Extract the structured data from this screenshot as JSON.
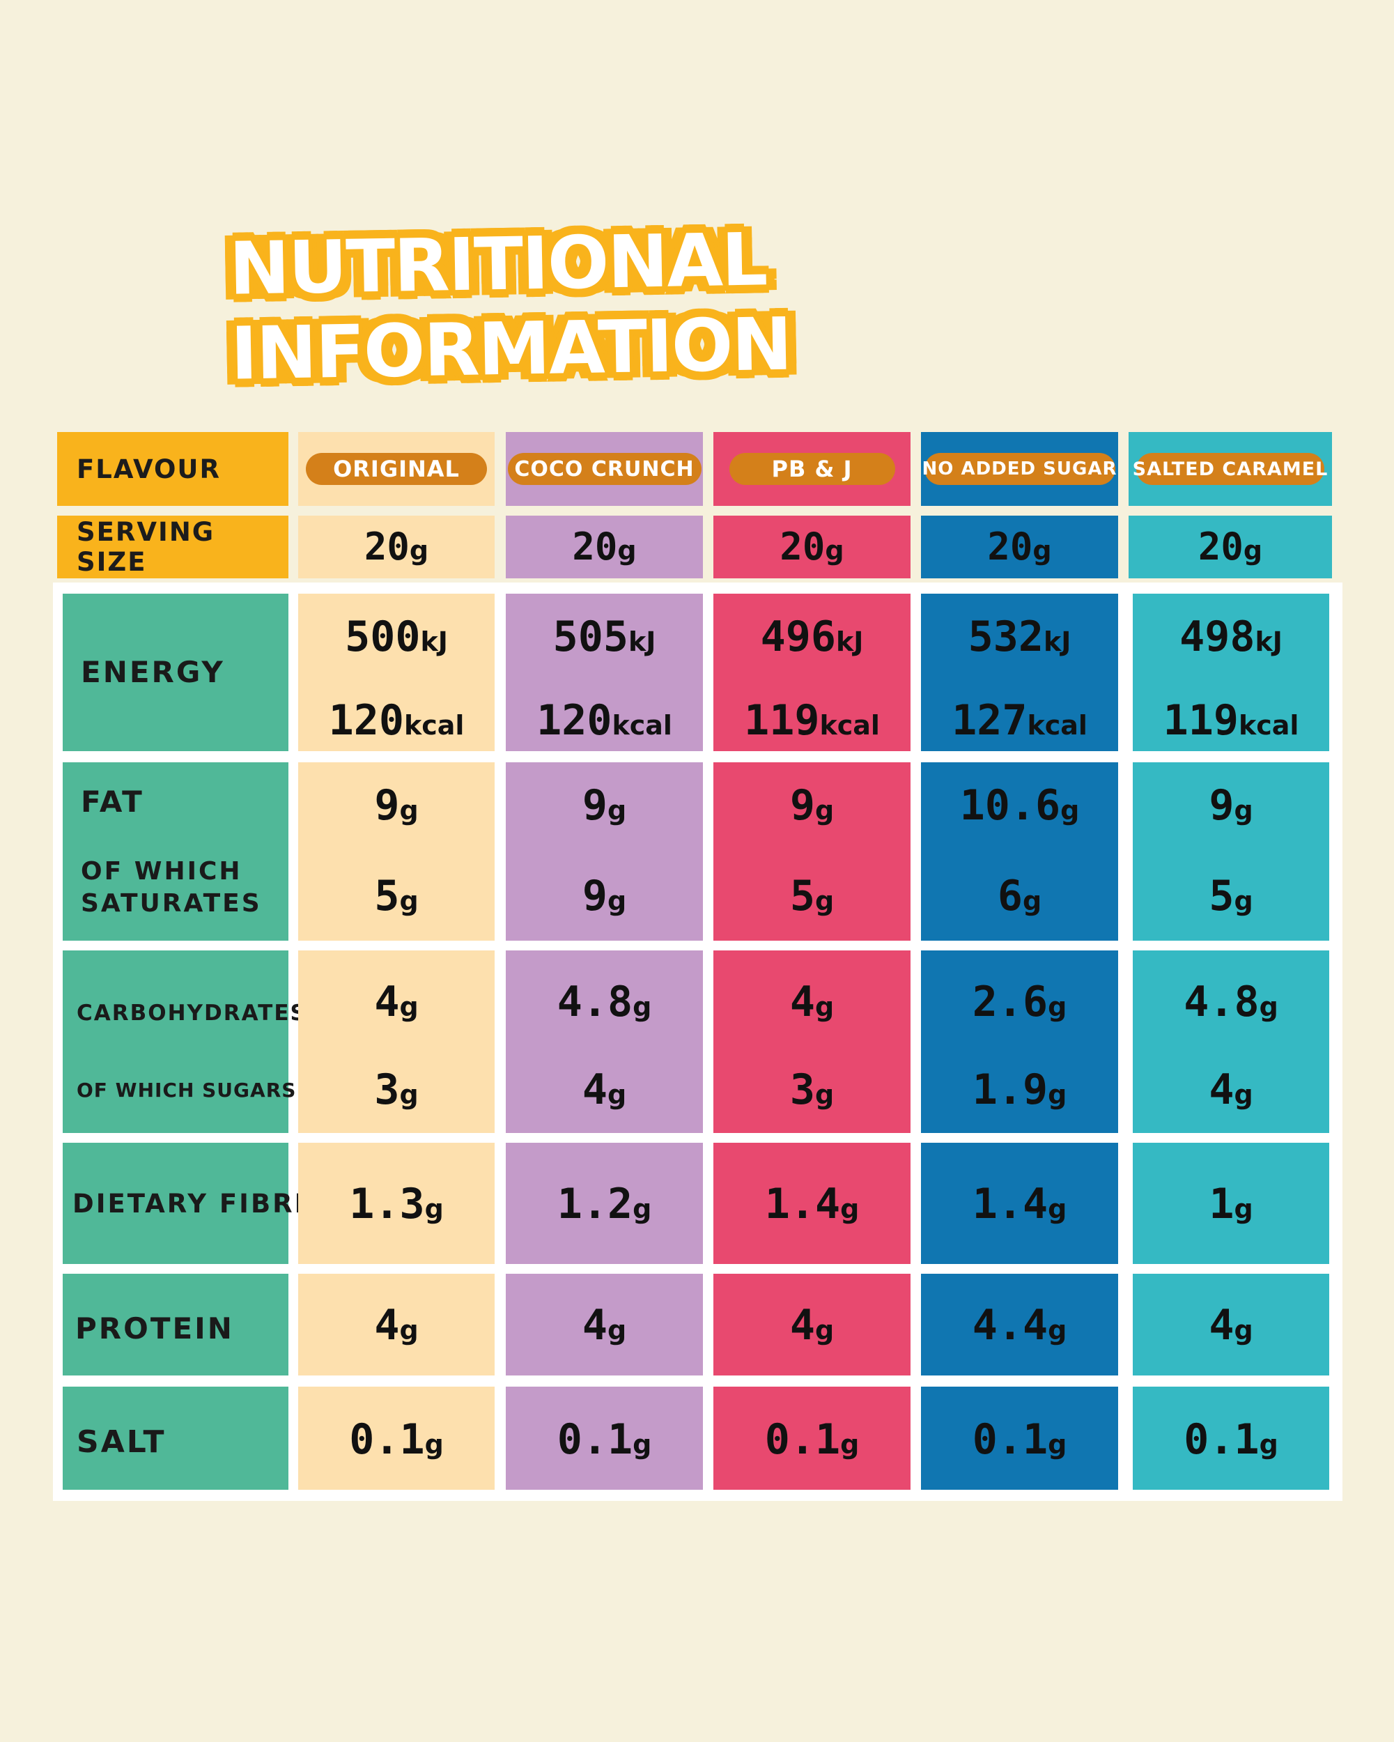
{
  "title": "NUTRITIONAL INFORMATION",
  "chart_data": {
    "type": "table",
    "header": {
      "flavour_label": "FLAVOUR",
      "serving_label": "SERVING SIZE"
    },
    "columns": [
      {
        "name": "ORIGINAL",
        "color": "#fde0ae",
        "serving": "20",
        "serving_unit": "g",
        "energy_kj": "500",
        "energy_kcal": "120",
        "fat": "9",
        "saturates": "5",
        "carbs": "4",
        "sugars": "3",
        "fibre": "1.3",
        "protein": "4",
        "salt": "0.1"
      },
      {
        "name": "COCO CRUNCH",
        "color": "#c49bc9",
        "serving": "20",
        "serving_unit": "g",
        "energy_kj": "505",
        "energy_kcal": "120",
        "fat": "9",
        "saturates": "9",
        "carbs": "4.8",
        "sugars": "4",
        "fibre": "1.2",
        "protein": "4",
        "salt": "0.1"
      },
      {
        "name": "PB & J",
        "color": "#e8496f",
        "serving": "20",
        "serving_unit": "g",
        "energy_kj": "496",
        "energy_kcal": "119",
        "fat": "9",
        "saturates": "5",
        "carbs": "4",
        "sugars": "3",
        "fibre": "1.4",
        "protein": "4",
        "salt": "0.1"
      },
      {
        "name": "NO ADDED SUGAR",
        "color": "#1076b1",
        "serving": "20",
        "serving_unit": "g",
        "energy_kj": "532",
        "energy_kcal": "127",
        "fat": "10.6",
        "saturates": "6",
        "carbs": "2.6",
        "sugars": "1.9",
        "fibre": "1.4",
        "protein": "4.4",
        "salt": "0.1"
      },
      {
        "name": "SALTED CARAMEL",
        "color": "#35b9c3",
        "serving": "20",
        "serving_unit": "g",
        "energy_kj": "498",
        "energy_kcal": "119",
        "fat": "9",
        "saturates": "5",
        "carbs": "4.8",
        "sugars": "4",
        "fibre": "1",
        "protein": "4",
        "salt": "0.1"
      }
    ],
    "row_labels": {
      "energy": "ENERGY",
      "fat": "FAT",
      "saturates_line1": "OF WHICH",
      "saturates_line2": "SATURATES",
      "carbs": "CARBOHYDRATES",
      "sugars": "OF WHICH SUGARS",
      "fibre": "DIETARY FIBRE",
      "protein": "PROTEIN",
      "salt": "SALT"
    },
    "units": {
      "kj": "kJ",
      "kcal": "kcal",
      "g": "g"
    }
  },
  "colors": {
    "background": "#f6f1dc",
    "header_yellow": "#f9b31c",
    "row_label_green": "#50b898",
    "pill": "#d4801a"
  }
}
